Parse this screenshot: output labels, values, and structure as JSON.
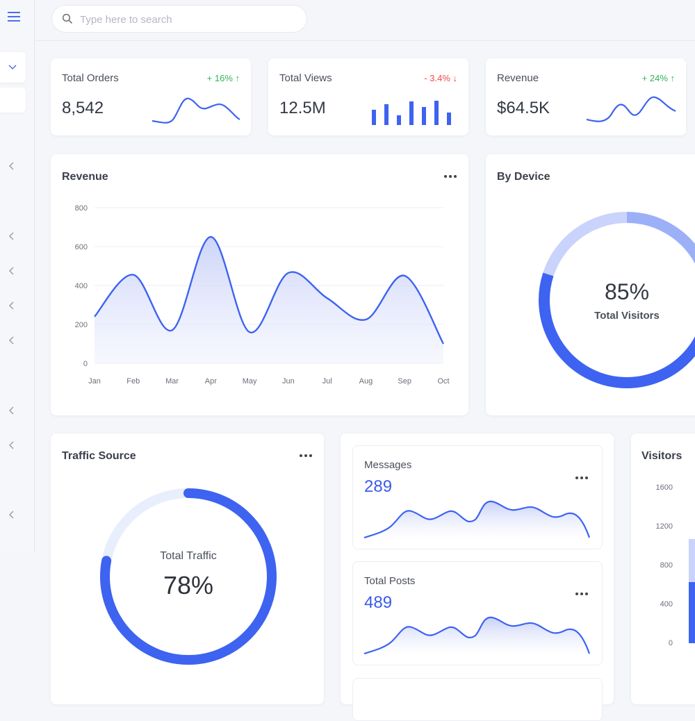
{
  "search": {
    "placeholder": "Type here to search"
  },
  "stats": [
    {
      "label": "Total Orders",
      "value": "8,542",
      "delta": "+ 16% ↑",
      "trend": "up"
    },
    {
      "label": "Total Views",
      "value": "12.5M",
      "delta": "- 3.4% ↓",
      "trend": "down"
    },
    {
      "label": "Revenue",
      "value": "$64.5K",
      "delta": "+ 24% ↑",
      "trend": "up"
    }
  ],
  "revenue_chart": {
    "title": "Revenue",
    "chart_data": {
      "type": "area",
      "categories": [
        "Jan",
        "Feb",
        "Mar",
        "Apr",
        "May",
        "Jun",
        "Jul",
        "Aug",
        "Sep",
        "Oct"
      ],
      "values": [
        240,
        455,
        170,
        650,
        160,
        465,
        335,
        225,
        450,
        100
      ],
      "ylim": [
        0,
        800
      ],
      "yticks": [
        "0",
        "200",
        "400",
        "600",
        "800"
      ],
      "grid": true
    }
  },
  "device": {
    "title": "By Device",
    "value": "85%",
    "caption": "Total Visitors",
    "percent": 85
  },
  "traffic": {
    "title": "Traffic Source",
    "caption": "Total Traffic",
    "value": "78%",
    "percent": 78
  },
  "messages": {
    "label": "Messages",
    "value": "289"
  },
  "posts": {
    "label": "Total Posts",
    "value": "489"
  },
  "visitors": {
    "title": "Visitors",
    "yticks": [
      "1600",
      "1200",
      "800",
      "400",
      "0"
    ]
  },
  "colors": {
    "accent": "#3d63f0",
    "accent_light": "#c9d3fb",
    "track": "#e9eefd"
  }
}
